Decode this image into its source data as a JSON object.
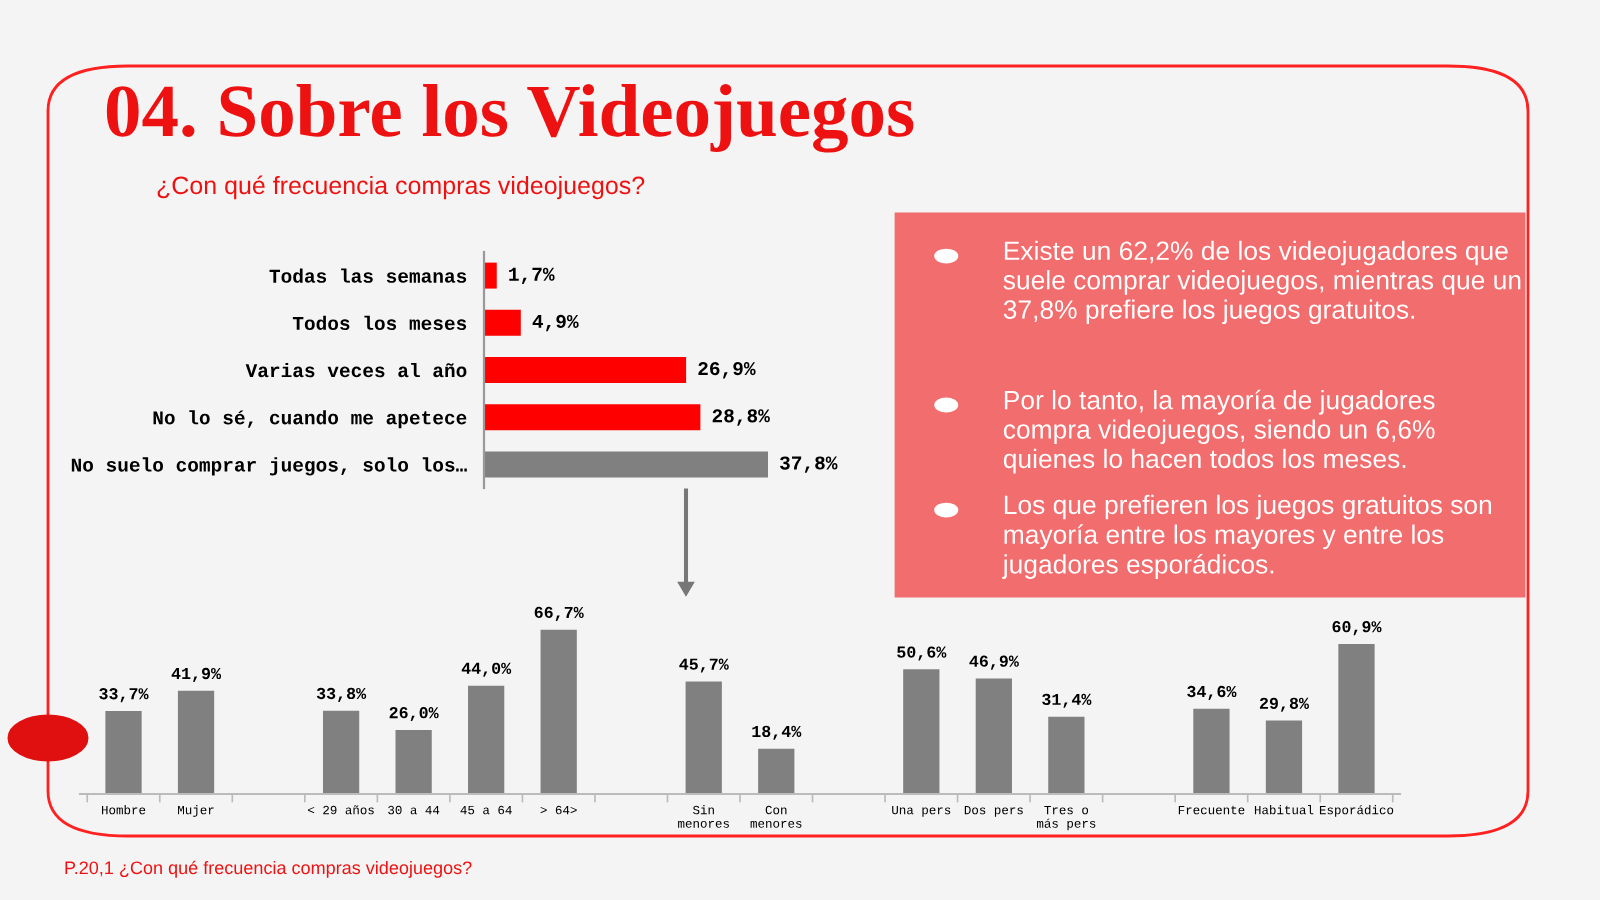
{
  "chart_data": [
    {
      "type": "bar",
      "orientation": "horizontal",
      "title": "04. Sobre los Videojuegos",
      "subtitle": "¿Con qué frecuencia compras videojuegos?",
      "categories": [
        "Todas las semanas",
        "Todos los meses",
        "Varias veces al año",
        "No lo sé, cuando me apetece",
        "No suelo comprar juegos, solo los…"
      ],
      "values": [
        1.7,
        4.9,
        26.9,
        28.8,
        37.8
      ],
      "colors": [
        "#ff0000",
        "#ff0000",
        "#ff0000",
        "#ff0000",
        "#808080"
      ],
      "value_labels": [
        "1,7%",
        "4,9%",
        "26,9%",
        "28,8%",
        "37,8%"
      ],
      "grid": false,
      "legend": false
    },
    {
      "type": "other",
      "annotations": [
        "Existe un 62,2% de los videojugadores que suele comprar videojuegos, mientras que un 37,8% prefiere los juegos gratuitos.",
        "Por lo tanto, la mayoría de jugadores compra videojuegos, siendo un 6,6% quienes lo hacen todos los meses.",
        "Los que prefieren los juegos gratuitos son mayoría entre los mayores y entre los jugadores esporádicos."
      ]
    },
    {
      "type": "bar",
      "categories": [
        "Hombre",
        "Mujer",
        null,
        "< 29 años",
        "30 a 44",
        "45 a 64",
        "> 64>",
        null,
        "Sin\nmenores",
        "Con\nmenores",
        null,
        "Una pers",
        "Dos pers",
        "Tres o\nmás pers",
        null,
        "Frecuente",
        "Habitual",
        "Esporádico"
      ],
      "values": [
        33.7,
        41.9,
        null,
        33.8,
        26.0,
        44.0,
        66.7,
        null,
        45.7,
        18.4,
        null,
        50.6,
        46.9,
        31.4,
        null,
        34.6,
        29.8,
        60.9
      ],
      "color": "#808080",
      "value_labels": [
        "33,7%",
        "41,9%",
        null,
        "33,8%",
        "26,0%",
        "44,0%",
        "66,7%",
        null,
        "45,7%",
        "18,4%",
        null,
        "50,6%",
        "46,9%",
        "31,4%",
        null,
        "34,6%",
        "29,8%",
        "60,9%"
      ],
      "annotations": [
        "P.20,1 ¿Con qué frecuencia compras videojuegos?"
      ],
      "grid": false,
      "legend": false
    }
  ]
}
